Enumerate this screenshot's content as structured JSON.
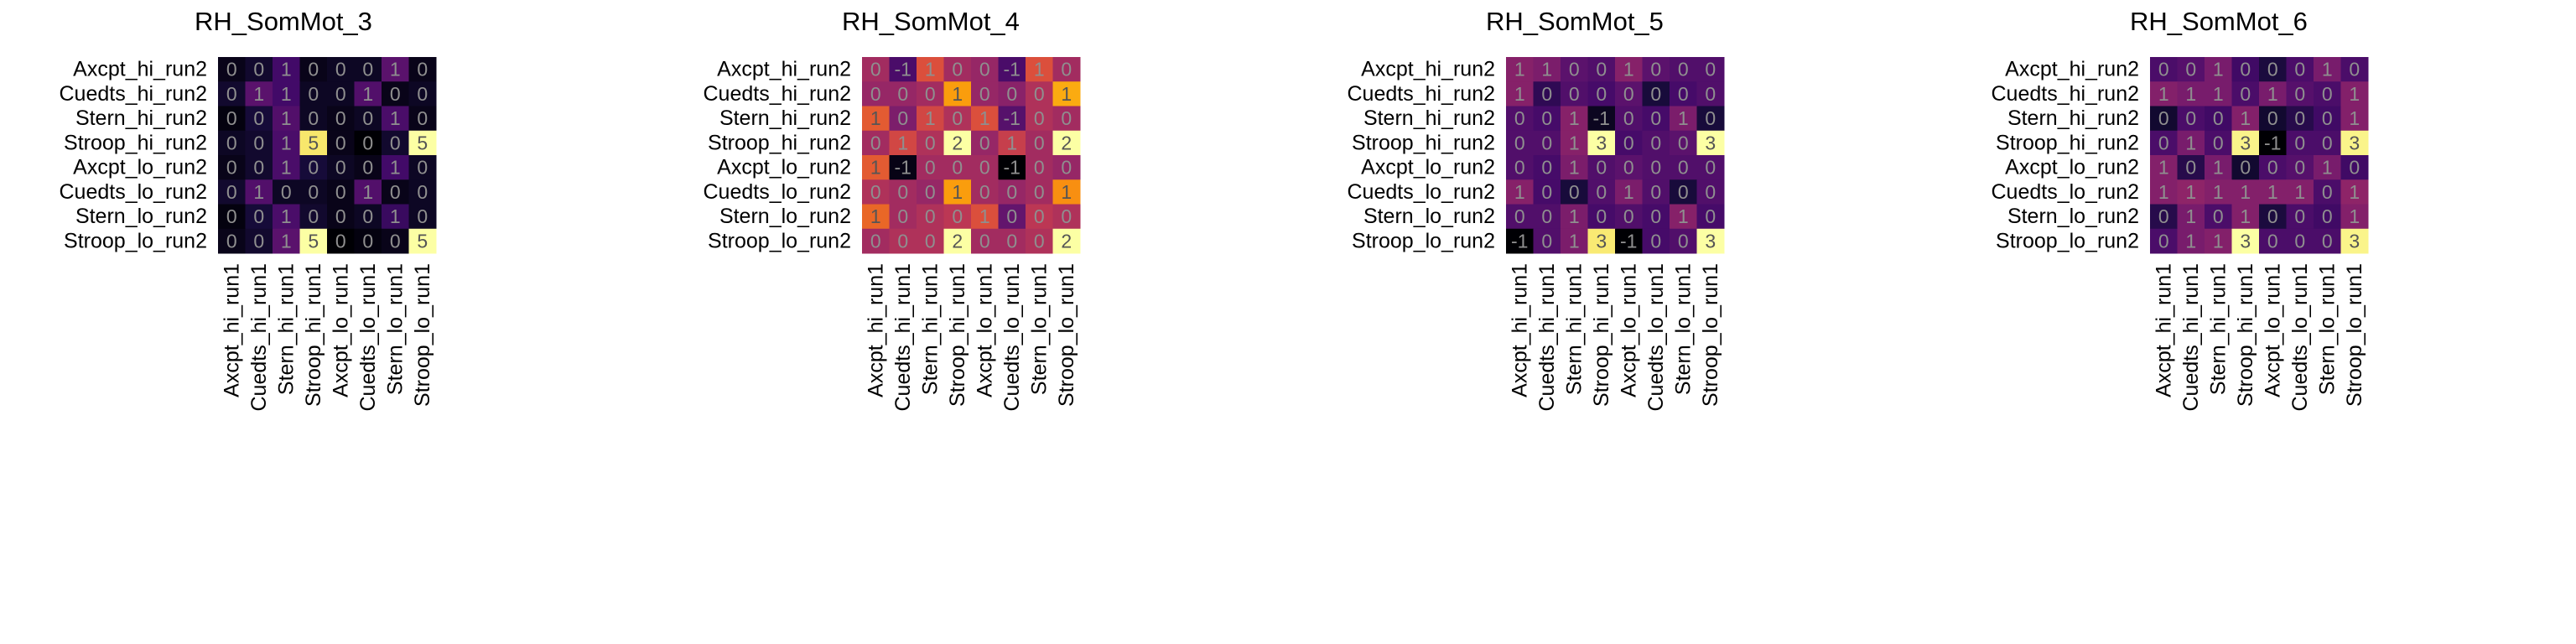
{
  "chart_data": [
    {
      "type": "heatmap",
      "title": "RH_SomMot_3",
      "rows": [
        "Axcpt_hi_run2",
        "Cuedts_hi_run2",
        "Stern_hi_run2",
        "Stroop_hi_run2",
        "Axcpt_lo_run2",
        "Cuedts_lo_run2",
        "Stern_lo_run2",
        "Stroop_lo_run2"
      ],
      "columns": [
        "Axcpt_hi_run1",
        "Cuedts_hi_run1",
        "Stern_hi_run1",
        "Stroop_hi_run1",
        "Axcpt_lo_run1",
        "Cuedts_lo_run1",
        "Stern_lo_run1",
        "Stroop_lo_run1"
      ],
      "values": [
        [
          0,
          0,
          1,
          0,
          0,
          0,
          1,
          0
        ],
        [
          0,
          1,
          1,
          0,
          0,
          1,
          0,
          0
        ],
        [
          0,
          0,
          1,
          0,
          0,
          0,
          1,
          0
        ],
        [
          0,
          0,
          1,
          5,
          0,
          0,
          0,
          5
        ],
        [
          0,
          0,
          1,
          0,
          0,
          0,
          1,
          0
        ],
        [
          0,
          1,
          0,
          0,
          0,
          1,
          0,
          0
        ],
        [
          0,
          0,
          1,
          0,
          0,
          0,
          1,
          0
        ],
        [
          0,
          0,
          1,
          5,
          0,
          0,
          0,
          5
        ]
      ],
      "cell_values": [
        [
          0.1,
          0.3,
          0.9,
          0.1,
          0.2,
          0.2,
          1.2,
          0.1
        ],
        [
          0.3,
          1.2,
          0.9,
          0.2,
          0.2,
          1.1,
          0.1,
          0.2
        ],
        [
          0.0,
          0.4,
          1.1,
          0.2,
          0.1,
          0.2,
          1.0,
          0.1
        ],
        [
          0.2,
          0.3,
          1.0,
          4.6,
          0.1,
          -0.1,
          0.3,
          4.9
        ],
        [
          0.1,
          0.3,
          1.0,
          0.4,
          0.2,
          0.1,
          0.9,
          0.2
        ],
        [
          0.3,
          1.1,
          0.2,
          0.2,
          0.1,
          1.1,
          0.1,
          0.2
        ],
        [
          0.0,
          0.4,
          1.0,
          0.3,
          0.1,
          0.2,
          0.8,
          0.2
        ],
        [
          0.1,
          0.3,
          1.2,
          4.9,
          -0.1,
          0.0,
          0.1,
          4.9
        ]
      ],
      "colormap": "inferno"
    },
    {
      "type": "heatmap",
      "title": "RH_SomMot_4",
      "rows": [
        "Axcpt_hi_run2",
        "Cuedts_hi_run2",
        "Stern_hi_run2",
        "Stroop_hi_run2",
        "Axcpt_lo_run2",
        "Cuedts_lo_run2",
        "Stern_lo_run2",
        "Stroop_lo_run2"
      ],
      "columns": [
        "Axcpt_hi_run1",
        "Cuedts_hi_run1",
        "Stern_hi_run1",
        "Stroop_hi_run1",
        "Axcpt_lo_run1",
        "Cuedts_lo_run1",
        "Stern_lo_run1",
        "Stroop_lo_run1"
      ],
      "values": [
        [
          0,
          -1,
          1,
          0,
          0,
          -1,
          1,
          0
        ],
        [
          0,
          0,
          0,
          1,
          0,
          0,
          0,
          1
        ],
        [
          1,
          0,
          1,
          0,
          1,
          -1,
          0,
          0
        ],
        [
          0,
          1,
          0,
          2,
          0,
          1,
          0,
          2
        ],
        [
          1,
          -1,
          0,
          0,
          0,
          -1,
          0,
          0
        ],
        [
          0,
          0,
          0,
          1,
          0,
          0,
          0,
          1
        ],
        [
          1,
          0,
          0,
          0,
          1,
          0,
          0,
          0
        ],
        [
          0,
          0,
          0,
          2,
          0,
          0,
          0,
          2
        ]
      ],
      "cell_values": [
        [
          0.1,
          -0.6,
          0.6,
          0.1,
          0.0,
          -0.6,
          0.6,
          0.1
        ],
        [
          0.0,
          0.0,
          0.1,
          1.2,
          0.0,
          -0.1,
          0.2,
          1.3
        ],
        [
          0.7,
          -0.2,
          0.5,
          0.2,
          0.6,
          -0.5,
          0.2,
          0.1
        ],
        [
          0.1,
          0.5,
          0.2,
          1.9,
          0.0,
          0.4,
          0.1,
          1.9
        ],
        [
          0.7,
          -1.2,
          0.1,
          0.1,
          0.1,
          -1.3,
          0.1,
          0.0
        ],
        [
          0.2,
          0.1,
          0.0,
          1.2,
          0.1,
          0.0,
          0.1,
          1.1
        ],
        [
          0.8,
          0.1,
          0.2,
          0.3,
          0.6,
          -0.4,
          0.3,
          0.2
        ],
        [
          0.1,
          0.2,
          0.2,
          1.9,
          0.1,
          0.1,
          0.2,
          1.9
        ]
      ],
      "colormap": "inferno"
    },
    {
      "type": "heatmap",
      "title": "RH_SomMot_5",
      "rows": [
        "Axcpt_hi_run2",
        "Cuedts_hi_run2",
        "Stern_hi_run2",
        "Stroop_hi_run2",
        "Axcpt_lo_run2",
        "Cuedts_lo_run2",
        "Stern_lo_run2",
        "Stroop_lo_run2"
      ],
      "columns": [
        "Axcpt_hi_run1",
        "Cuedts_hi_run1",
        "Stern_hi_run1",
        "Stroop_hi_run1",
        "Axcpt_lo_run1",
        "Cuedts_lo_run1",
        "Stern_lo_run1",
        "Stroop_lo_run1"
      ],
      "values": [
        [
          1,
          1,
          0,
          0,
          1,
          0,
          0,
          0
        ],
        [
          1,
          0,
          0,
          0,
          0,
          0,
          0,
          0
        ],
        [
          0,
          0,
          1,
          -1,
          0,
          0,
          1,
          0
        ],
        [
          0,
          0,
          1,
          3,
          0,
          0,
          0,
          3
        ],
        [
          0,
          0,
          1,
          0,
          0,
          0,
          0,
          0
        ],
        [
          1,
          0,
          0,
          0,
          1,
          0,
          0,
          0
        ],
        [
          0,
          0,
          1,
          0,
          0,
          0,
          1,
          0
        ],
        [
          -1,
          0,
          1,
          3,
          -1,
          0,
          0,
          3
        ]
      ],
      "cell_values": [
        [
          0.7,
          0.6,
          0.3,
          0.2,
          0.7,
          0.3,
          0.2,
          0.2
        ],
        [
          0.7,
          -0.1,
          0.2,
          0.1,
          0.3,
          -0.3,
          0.1,
          0.2
        ],
        [
          0.2,
          0.1,
          0.7,
          -0.5,
          0.2,
          0.1,
          0.6,
          -0.3
        ],
        [
          0.2,
          0.2,
          0.7,
          3.1,
          0.1,
          0.2,
          0.3,
          3.1
        ],
        [
          0.2,
          0.1,
          0.6,
          0.2,
          0.3,
          0.2,
          0.2,
          0.2
        ],
        [
          0.7,
          0.1,
          -0.3,
          0.2,
          0.6,
          0.2,
          -0.3,
          0.2
        ],
        [
          0.2,
          0.2,
          0.6,
          0.1,
          0.2,
          0.1,
          0.7,
          0.1
        ],
        [
          -0.7,
          0.2,
          0.6,
          2.9,
          -0.7,
          0.1,
          0.2,
          3.1
        ]
      ],
      "colormap": "inferno"
    },
    {
      "type": "heatmap",
      "title": "RH_SomMot_6",
      "rows": [
        "Axcpt_hi_run2",
        "Cuedts_hi_run2",
        "Stern_hi_run2",
        "Stroop_hi_run2",
        "Axcpt_lo_run2",
        "Cuedts_lo_run2",
        "Stern_lo_run2",
        "Stroop_lo_run2"
      ],
      "columns": [
        "Axcpt_hi_run1",
        "Cuedts_hi_run1",
        "Stern_hi_run1",
        "Stroop_hi_run1",
        "Axcpt_lo_run1",
        "Cuedts_lo_run1",
        "Stern_lo_run1",
        "Stroop_lo_run1"
      ],
      "values": [
        [
          0,
          0,
          1,
          0,
          0,
          0,
          1,
          0
        ],
        [
          1,
          1,
          1,
          0,
          1,
          0,
          0,
          1
        ],
        [
          0,
          0,
          0,
          1,
          0,
          0,
          0,
          1
        ],
        [
          0,
          1,
          0,
          3,
          -1,
          0,
          0,
          3
        ],
        [
          1,
          0,
          1,
          0,
          0,
          0,
          1,
          0
        ],
        [
          1,
          1,
          1,
          1,
          1,
          1,
          0,
          1
        ],
        [
          0,
          1,
          0,
          1,
          0,
          0,
          0,
          1
        ],
        [
          0,
          1,
          1,
          3,
          0,
          0,
          0,
          3
        ]
      ],
      "cell_values": [
        [
          0.2,
          0.3,
          0.6,
          0.1,
          -0.2,
          0.2,
          0.6,
          0.2
        ],
        [
          0.7,
          0.6,
          0.6,
          0.2,
          0.6,
          0.3,
          0.2,
          0.7
        ],
        [
          -0.3,
          0.2,
          0.1,
          0.7,
          -0.3,
          -0.1,
          0.1,
          0.7
        ],
        [
          0.2,
          0.6,
          0.2,
          2.9,
          -0.6,
          0.2,
          0.2,
          2.9
        ],
        [
          0.7,
          -0.1,
          0.6,
          -0.3,
          0.2,
          0.3,
          0.6,
          0.1
        ],
        [
          0.7,
          0.8,
          0.7,
          0.7,
          0.7,
          0.7,
          0.2,
          0.8
        ],
        [
          -0.1,
          0.6,
          0.2,
          0.7,
          -0.2,
          0.2,
          0.1,
          0.7
        ],
        [
          0.2,
          0.6,
          0.7,
          3.0,
          0.2,
          0.2,
          0.2,
          2.9
        ]
      ],
      "colormap": "inferno"
    }
  ]
}
